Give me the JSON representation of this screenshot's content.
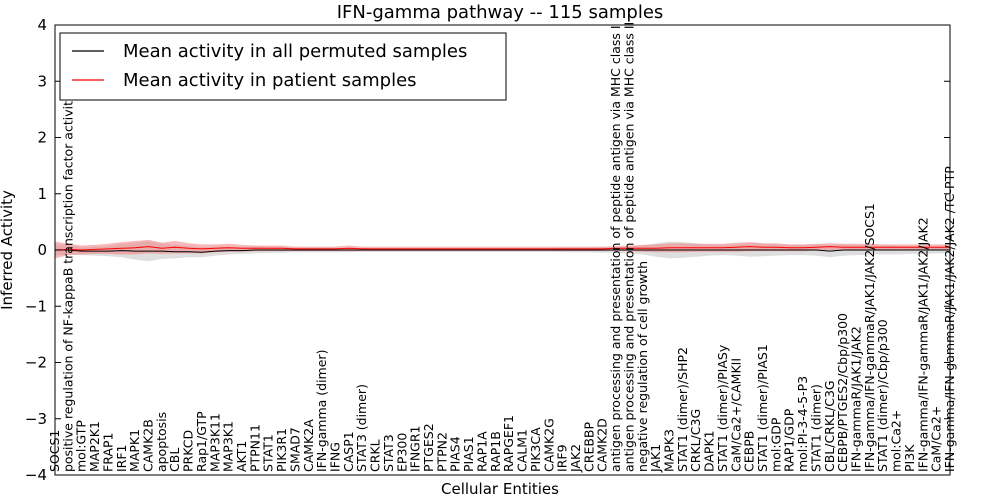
{
  "chart_data": {
    "type": "line",
    "title": "IFN-gamma pathway -- 115 samples",
    "xlabel": "Cellular Entities",
    "ylabel": "Inferred Activity",
    "ylim": [
      -4,
      4
    ],
    "yticks": [
      "4",
      "3",
      "2",
      "1",
      "0",
      "−1",
      "−2",
      "−3",
      "−4"
    ],
    "legend": {
      "position": "top-left",
      "entries": [
        {
          "label": "Mean activity in all permuted samples",
          "color": "#000000"
        },
        {
          "label": "Mean activity in patient samples",
          "color": "#ff0000"
        }
      ]
    },
    "categories": [
      "SOCS1",
      "positive regulation of NF-kappaB transcription factor activity",
      "mol:GTP",
      "MAP2K1",
      "FRAP1",
      "IRF1",
      "MAPK1",
      "CAMK2B",
      "apoptosis",
      "CBL",
      "PRKCD",
      "Rap1/GTP",
      "MAP3K11",
      "MAP3K1",
      "AKT1",
      "PTPN11",
      "STAT1",
      "PIK3R1",
      "SMAD7",
      "CAMK2A",
      "IFN-gamma (dimer)",
      "IFNG",
      "CASP1",
      "STAT3 (dimer)",
      "CRKL",
      "STAT3",
      "EP300",
      "IFNGR1",
      "PTGES2",
      "PTPN2",
      "PIAS4",
      "PIAS1",
      "RAP1A",
      "RAP1B",
      "RAPGEF1",
      "CALM1",
      "PIK3CA",
      "CAMK2G",
      "IRF9",
      "JAK2",
      "CREBBP",
      "CAMK2D",
      "antigen processing and presentation of peptide antigen via MHC class I",
      "antigen processing and presentation of peptide antigen via MHC class II",
      "negative regulation of cell growth",
      "JAK1",
      "MAPK3",
      "STAT1 (dimer)/SHP2",
      "CRKL/C3G",
      "DAPK1",
      "STAT1 (dimer)/PIASy",
      "CaM/Ca2+/CAMKII",
      "CEBPB",
      "STAT1 (dimer)/PIAS1",
      "mol:GDP",
      "RAP1/GDP",
      "mol:PI-3-4-5-P3",
      "STAT1 (dimer)",
      "CBL/CRKL/C3G",
      "CEBPB/PTGES2/Cbp/p300",
      "IFN-gammaR/JAK1/JAK2",
      "IFN-gamma/IFN-gammaR/JAK1/JAK2/SOCS1",
      "STAT1 (dimer)/Cbp/p300",
      "mol:Ca2+",
      "PI3K",
      "IFN-gamma/IFN-gammaR/JAK1/JAK2/JAK2",
      "CaM/Ca2+",
      "IFN-gamma/IFN-gammaR/JAK1/JAK2/JAK2 /TC-PTP"
    ],
    "series": [
      {
        "name": "Mean activity in all permuted samples",
        "color": "#000000",
        "values": [
          0.0,
          0.0,
          -0.02,
          -0.02,
          -0.02,
          -0.01,
          -0.02,
          -0.02,
          -0.02,
          -0.03,
          -0.03,
          -0.04,
          -0.02,
          -0.01,
          -0.01,
          0.0,
          0.0,
          0.0,
          0.0,
          0.0,
          0.0,
          0.0,
          0.0,
          0.0,
          0.0,
          0.0,
          0.0,
          0.0,
          0.0,
          0.0,
          0.0,
          0.0,
          0.0,
          0.0,
          0.0,
          0.0,
          0.0,
          0.0,
          0.0,
          0.0,
          0.0,
          0.0,
          0.0,
          0.0,
          0.0,
          0.0,
          0.0,
          0.0,
          0.0,
          0.0,
          0.0,
          0.0,
          0.0,
          0.0,
          0.0,
          0.0,
          0.0,
          0.0,
          -0.02,
          0.0,
          0.0,
          0.0,
          0.0,
          0.0,
          0.0,
          0.0,
          0.0,
          0.0
        ],
        "band": [
          0.1,
          0.08,
          0.07,
          0.08,
          0.09,
          0.12,
          0.15,
          0.18,
          0.14,
          0.12,
          0.1,
          0.09,
          0.08,
          0.07,
          0.06,
          0.06,
          0.05,
          0.05,
          0.04,
          0.04,
          0.04,
          0.04,
          0.04,
          0.03,
          0.03,
          0.03,
          0.03,
          0.03,
          0.03,
          0.03,
          0.03,
          0.03,
          0.03,
          0.03,
          0.03,
          0.03,
          0.03,
          0.03,
          0.04,
          0.04,
          0.04,
          0.05,
          0.05,
          0.06,
          0.08,
          0.12,
          0.15,
          0.14,
          0.12,
          0.1,
          0.09,
          0.1,
          0.12,
          0.11,
          0.1,
          0.09,
          0.09,
          0.1,
          0.11,
          0.1,
          0.09,
          0.08,
          0.08,
          0.08,
          0.07,
          0.07,
          0.06,
          0.06
        ]
      },
      {
        "name": "Mean activity in patient samples",
        "color": "#ff0000",
        "values": [
          0.0,
          0.01,
          0.0,
          0.01,
          0.02,
          0.03,
          0.04,
          0.06,
          0.03,
          0.05,
          0.03,
          0.02,
          0.03,
          0.04,
          0.03,
          0.03,
          0.03,
          0.03,
          0.02,
          0.02,
          0.02,
          0.02,
          0.03,
          0.02,
          0.02,
          0.02,
          0.02,
          0.02,
          0.02,
          0.02,
          0.02,
          0.02,
          0.02,
          0.02,
          0.02,
          0.02,
          0.02,
          0.02,
          0.02,
          0.02,
          0.02,
          0.02,
          0.03,
          0.03,
          0.03,
          0.03,
          0.04,
          0.04,
          0.04,
          0.04,
          0.04,
          0.05,
          0.06,
          0.05,
          0.05,
          0.04,
          0.04,
          0.05,
          0.06,
          0.05,
          0.05,
          0.05,
          0.05,
          0.05,
          0.05,
          0.05,
          0.05,
          0.05
        ],
        "band": [
          0.15,
          0.1,
          0.08,
          0.08,
          0.09,
          0.11,
          0.12,
          0.12,
          0.1,
          0.11,
          0.09,
          0.08,
          0.07,
          0.07,
          0.06,
          0.05,
          0.05,
          0.05,
          0.04,
          0.04,
          0.04,
          0.04,
          0.05,
          0.04,
          0.04,
          0.04,
          0.04,
          0.04,
          0.04,
          0.04,
          0.04,
          0.04,
          0.04,
          0.04,
          0.04,
          0.04,
          0.04,
          0.04,
          0.04,
          0.04,
          0.04,
          0.04,
          0.04,
          0.05,
          0.06,
          0.07,
          0.08,
          0.08,
          0.07,
          0.07,
          0.07,
          0.08,
          0.08,
          0.07,
          0.07,
          0.06,
          0.06,
          0.06,
          0.06,
          0.06,
          0.06,
          0.06,
          0.05,
          0.05,
          0.05,
          0.05,
          0.05,
          0.05
        ]
      }
    ]
  }
}
